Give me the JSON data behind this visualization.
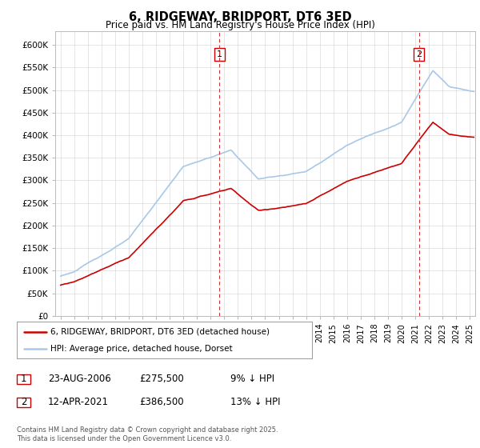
{
  "title": "6, RIDGEWAY, BRIDPORT, DT6 3ED",
  "subtitle": "Price paid vs. HM Land Registry's House Price Index (HPI)",
  "ylabel_ticks": [
    "£0",
    "£50K",
    "£100K",
    "£150K",
    "£200K",
    "£250K",
    "£300K",
    "£350K",
    "£400K",
    "£450K",
    "£500K",
    "£550K",
    "£600K"
  ],
  "ylim": [
    0,
    630000
  ],
  "yticks": [
    0,
    50000,
    100000,
    150000,
    200000,
    250000,
    300000,
    350000,
    400000,
    450000,
    500000,
    550000,
    600000
  ],
  "hpi_color": "#a8c8e8",
  "price_color": "#cc0000",
  "marker1_x": 2006.64,
  "marker2_x": 2021.28,
  "legend_line1": "6, RIDGEWAY, BRIDPORT, DT6 3ED (detached house)",
  "legend_line2": "HPI: Average price, detached house, Dorset",
  "ann1_num": "1",
  "ann1_date": "23-AUG-2006",
  "ann1_price": "£275,500",
  "ann1_hpi": "9% ↓ HPI",
  "ann2_num": "2",
  "ann2_date": "12-APR-2021",
  "ann2_price": "£386,500",
  "ann2_hpi": "13% ↓ HPI",
  "copyright": "Contains HM Land Registry data © Crown copyright and database right 2025.\nThis data is licensed under the Open Government Licence v3.0.",
  "background_color": "#ffffff",
  "grid_color": "#cccccc",
  "xlim_left": 1994.6,
  "xlim_right": 2025.4
}
